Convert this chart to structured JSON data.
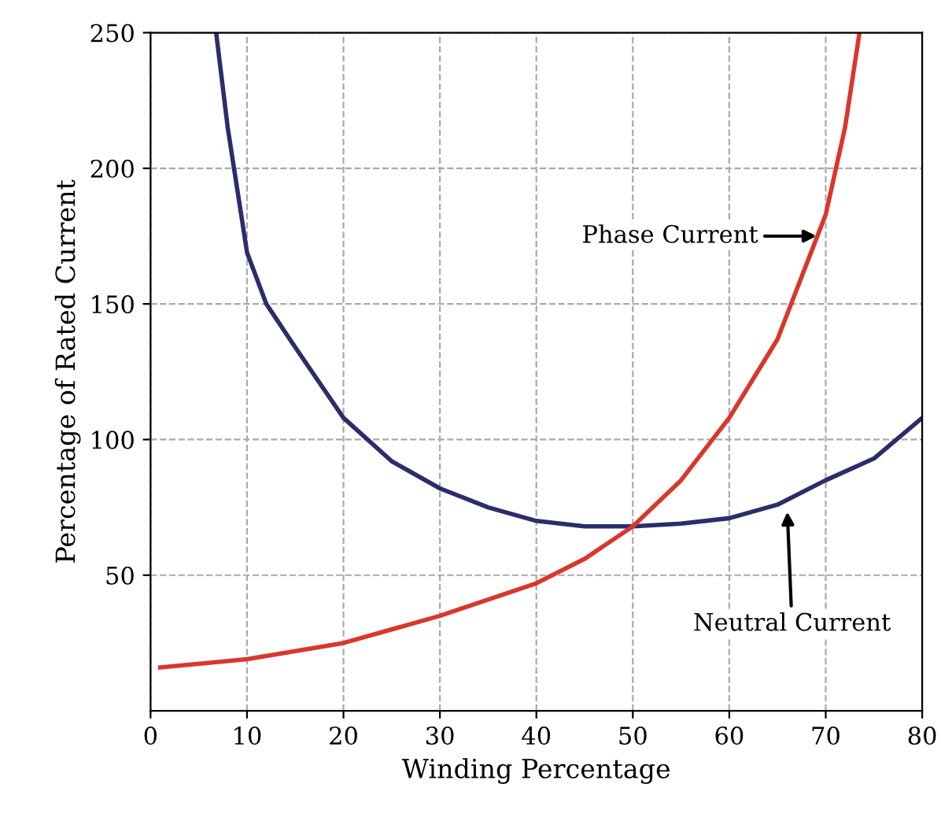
{
  "chart_data": {
    "type": "line",
    "xlabel": "Winding Percentage",
    "ylabel": "Percentage of Rated Current",
    "series": [
      {
        "color": "#2b2d6b",
        "x": [
          6.8,
          8,
          10,
          12,
          15,
          20,
          25,
          30,
          35,
          40,
          45,
          50,
          55,
          60,
          65,
          70,
          75,
          80
        ],
        "values": [
          250,
          215,
          169,
          150,
          134,
          108,
          92,
          82,
          75,
          70,
          68,
          68,
          69,
          71,
          76,
          85,
          93,
          108
        ]
      },
      {
        "color": "#d9372b",
        "x": [
          1,
          10,
          20,
          30,
          40,
          45,
          50,
          55,
          60,
          65,
          70,
          72,
          73.5
        ],
        "values": [
          16,
          19,
          25,
          35,
          47,
          56,
          68,
          85,
          108,
          137,
          183,
          215,
          250
        ]
      }
    ],
    "annotations": [
      {
        "text": "Phase Current",
        "x": 69.5,
        "y": 175
      },
      "Neutral Current"
    ],
    "xlim": [
      0,
      80
    ],
    "xticks": [
      0,
      10,
      20,
      30,
      40,
      50,
      60,
      70,
      80
    ],
    "ylim": [
      0,
      250
    ],
    "yticks": [
      50,
      100,
      150,
      200,
      250
    ],
    "grid": true,
    "line_style": "solid",
    "marker": "none"
  }
}
